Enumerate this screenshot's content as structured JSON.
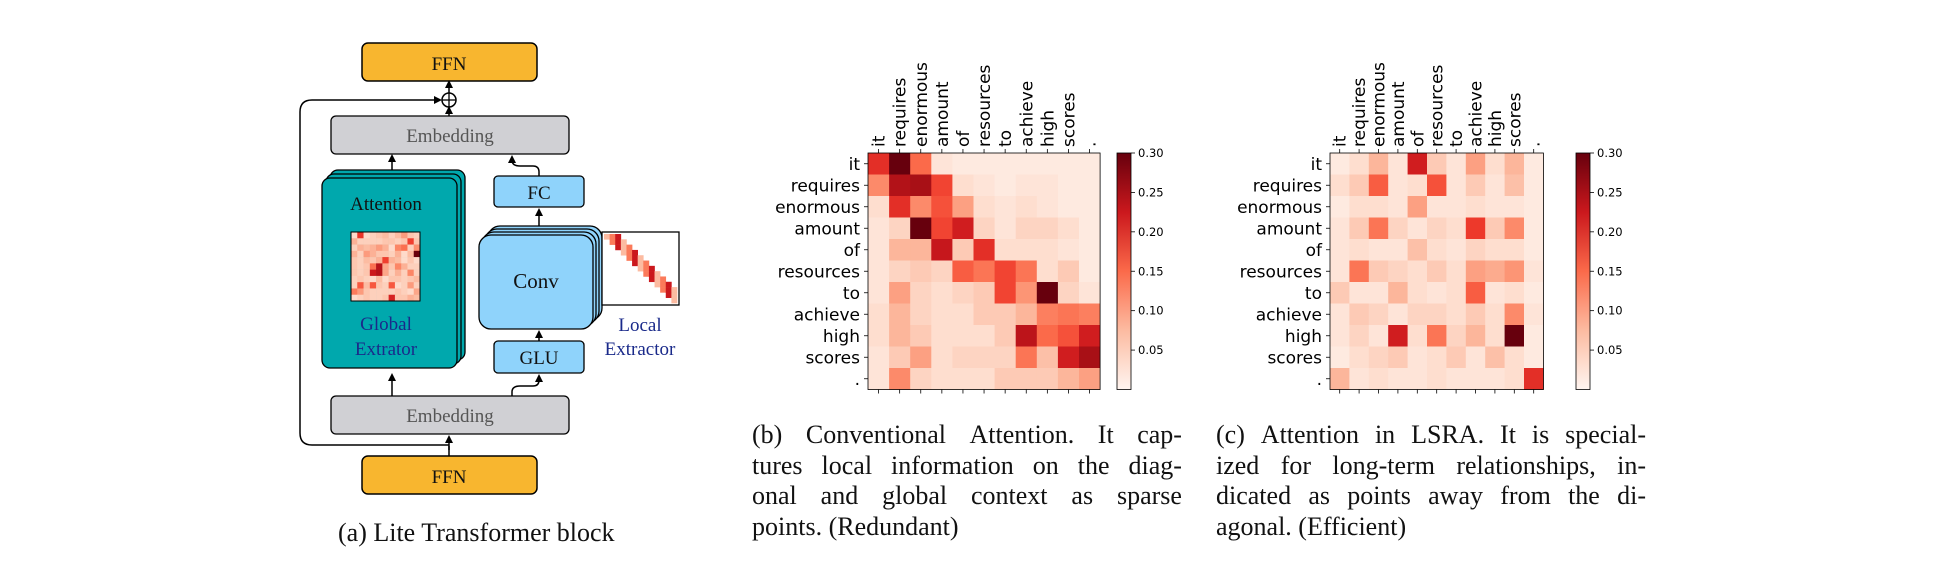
{
  "panel_a": {
    "ffn_top": "FFN",
    "ffn_bottom": "FFN",
    "embedding_top": "Embedding",
    "embedding_bottom": "Embedding",
    "attention": "Attention",
    "global_extractor_1": "Global",
    "global_extractor_2": "Extrator",
    "conv": "Conv",
    "fc": "FC",
    "glu": "GLU",
    "local_extractor_1": "Local",
    "local_extractor_2": "Extractor",
    "caption": "(a) Lite Transformer block",
    "colors": {
      "ffn": "#f8b62f",
      "embedding": "#d0d0d4",
      "attention": "#00a8ad",
      "conv": "#8fd3fb",
      "blue_text": "#1a2a8a"
    }
  },
  "panel_b": {
    "caption_lines": [
      "(b) Conventional Attention. It cap-",
      "tures local information on the diag-",
      "onal and global context as sparse",
      "points. (Redundant)"
    ]
  },
  "panel_c": {
    "caption_lines": [
      "(c) Attention in LSRA. It is special-",
      "ized for long-term relationships, in-",
      "dicated as points away from the di-",
      "agonal. (Efficient)"
    ]
  },
  "chart_data": [
    {
      "type": "heatmap",
      "x_labels": [
        "it",
        "requires",
        "enormous",
        "amount",
        "of",
        "resources",
        "to",
        "achieve",
        "high",
        "scores",
        "."
      ],
      "y_labels": [
        "it",
        "requires",
        "enormous",
        "amount",
        "of",
        "resources",
        "to",
        "achieve",
        "high",
        "scores",
        "."
      ],
      "colorbar": {
        "range": [
          0,
          0.3
        ],
        "ticks": [
          "0.05",
          "0.10",
          "0.15",
          "0.20",
          "0.25",
          "0.30"
        ],
        "colormap": "Reds"
      },
      "values": [
        [
          0.2,
          0.3,
          0.15,
          0.03,
          0.02,
          0.02,
          0.02,
          0.02,
          0.02,
          0.02,
          0.02
        ],
        [
          0.12,
          0.25,
          0.26,
          0.18,
          0.04,
          0.03,
          0.02,
          0.03,
          0.03,
          0.02,
          0.02
        ],
        [
          0.04,
          0.2,
          0.12,
          0.17,
          0.1,
          0.04,
          0.03,
          0.04,
          0.03,
          0.02,
          0.02
        ],
        [
          0.03,
          0.05,
          0.3,
          0.18,
          0.22,
          0.05,
          0.03,
          0.05,
          0.05,
          0.04,
          0.02
        ],
        [
          0.03,
          0.08,
          0.08,
          0.23,
          0.06,
          0.2,
          0.04,
          0.04,
          0.04,
          0.03,
          0.02
        ],
        [
          0.03,
          0.05,
          0.06,
          0.05,
          0.16,
          0.14,
          0.18,
          0.14,
          0.04,
          0.06,
          0.02
        ],
        [
          0.03,
          0.1,
          0.05,
          0.04,
          0.05,
          0.06,
          0.18,
          0.11,
          0.3,
          0.05,
          0.03
        ],
        [
          0.04,
          0.08,
          0.05,
          0.04,
          0.04,
          0.06,
          0.06,
          0.08,
          0.13,
          0.14,
          0.13
        ],
        [
          0.04,
          0.08,
          0.06,
          0.04,
          0.04,
          0.04,
          0.06,
          0.24,
          0.15,
          0.17,
          0.22
        ],
        [
          0.03,
          0.06,
          0.1,
          0.04,
          0.05,
          0.05,
          0.05,
          0.14,
          0.07,
          0.22,
          0.26
        ],
        [
          0.03,
          0.12,
          0.05,
          0.04,
          0.04,
          0.04,
          0.06,
          0.06,
          0.06,
          0.08,
          0.1
        ]
      ]
    },
    {
      "type": "heatmap",
      "x_labels": [
        "it",
        "requires",
        "enormous",
        "amount",
        "of",
        "resources",
        "to",
        "achieve",
        "high",
        "scores",
        "."
      ],
      "y_labels": [
        "it",
        "requires",
        "enormous",
        "amount",
        "of",
        "resources",
        "to",
        "achieve",
        "high",
        "scores",
        "."
      ],
      "colorbar": {
        "range": [
          0,
          0.3
        ],
        "ticks": [
          "0.05",
          "0.10",
          "0.15",
          "0.20",
          "0.25",
          "0.30"
        ],
        "colormap": "Reds"
      },
      "values": [
        [
          0.02,
          0.04,
          0.08,
          0.03,
          0.22,
          0.06,
          0.03,
          0.1,
          0.04,
          0.08,
          0.02
        ],
        [
          0.04,
          0.06,
          0.16,
          0.03,
          0.04,
          0.17,
          0.03,
          0.06,
          0.03,
          0.07,
          0.02
        ],
        [
          0.02,
          0.04,
          0.04,
          0.03,
          0.1,
          0.03,
          0.03,
          0.04,
          0.03,
          0.03,
          0.02
        ],
        [
          0.03,
          0.06,
          0.14,
          0.05,
          0.03,
          0.05,
          0.04,
          0.19,
          0.06,
          0.12,
          0.02
        ],
        [
          0.03,
          0.04,
          0.03,
          0.03,
          0.07,
          0.04,
          0.03,
          0.05,
          0.04,
          0.04,
          0.02
        ],
        [
          0.03,
          0.14,
          0.06,
          0.05,
          0.04,
          0.06,
          0.04,
          0.1,
          0.09,
          0.11,
          0.03
        ],
        [
          0.06,
          0.03,
          0.03,
          0.08,
          0.04,
          0.03,
          0.04,
          0.16,
          0.03,
          0.04,
          0.02
        ],
        [
          0.03,
          0.06,
          0.05,
          0.03,
          0.05,
          0.05,
          0.04,
          0.06,
          0.04,
          0.12,
          0.03
        ],
        [
          0.03,
          0.05,
          0.03,
          0.22,
          0.04,
          0.14,
          0.05,
          0.08,
          0.04,
          0.3,
          0.02
        ],
        [
          0.02,
          0.04,
          0.05,
          0.06,
          0.03,
          0.04,
          0.06,
          0.03,
          0.07,
          0.04,
          0.02
        ],
        [
          0.08,
          0.03,
          0.04,
          0.03,
          0.03,
          0.04,
          0.03,
          0.03,
          0.03,
          0.04,
          0.2
        ]
      ]
    }
  ]
}
